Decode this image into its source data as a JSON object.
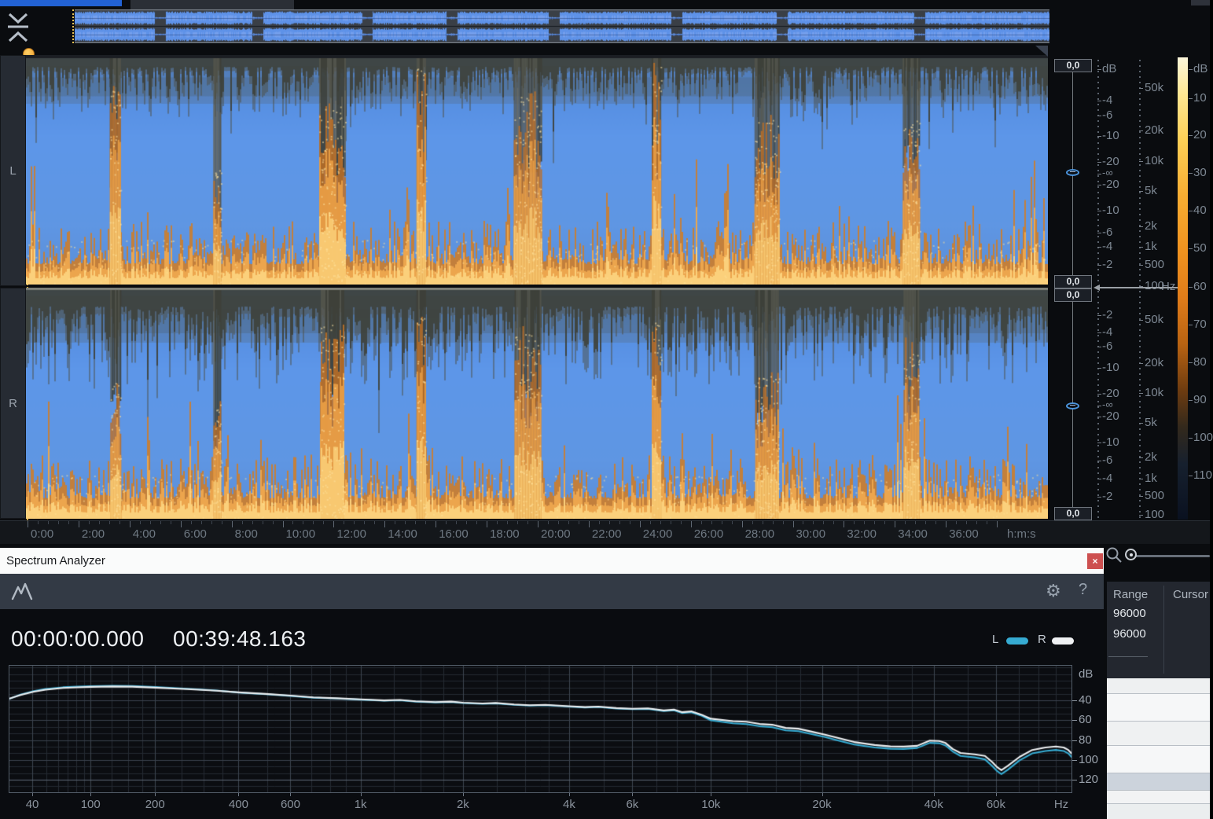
{
  "colors": {
    "accent_blue": "#2262d4",
    "waveform_blue": "#5b90e6",
    "flame_orange": "#f0a640",
    "curve_left": "#36abd2",
    "curve_right": "#eceff1",
    "close_red": "#cd5050",
    "selected_row": "#ccd3dc"
  },
  "channels": {
    "left_label": "L",
    "right_label": "R",
    "gain_boxes": [
      {
        "value": "0,0",
        "y": 75
      },
      {
        "value": "0,0",
        "y": 350
      },
      {
        "value": "0,0",
        "y": 367
      },
      {
        "value": "0,0",
        "y": 645
      }
    ],
    "amp_unit": "dB",
    "amp_ticks_left": [
      {
        "t": "dB",
        "y": 88
      },
      {
        "t": "-4",
        "y": 128
      },
      {
        "t": "-6",
        "y": 147
      },
      {
        "t": "-10",
        "y": 173
      },
      {
        "t": "-20",
        "y": 206
      },
      {
        "t": "-∞",
        "y": 221
      },
      {
        "t": "-20",
        "y": 235
      },
      {
        "t": "-10",
        "y": 268
      },
      {
        "t": "-6",
        "y": 296
      },
      {
        "t": "-4",
        "y": 314
      },
      {
        "t": "-2",
        "y": 337
      }
    ],
    "amp_ticks_right": [
      {
        "t": "-2",
        "y": 401
      },
      {
        "t": "-4",
        "y": 423
      },
      {
        "t": "-6",
        "y": 441
      },
      {
        "t": "-10",
        "y": 468
      },
      {
        "t": "-20",
        "y": 501
      },
      {
        "t": "-∞",
        "y": 516
      },
      {
        "t": "-20",
        "y": 530
      },
      {
        "t": "-10",
        "y": 563
      },
      {
        "t": "-6",
        "y": 586
      },
      {
        "t": "-4",
        "y": 609
      },
      {
        "t": "-2",
        "y": 632
      }
    ],
    "freq_ticks_left": [
      {
        "t": "50k",
        "y": 112
      },
      {
        "t": "20k",
        "y": 166
      },
      {
        "t": "10k",
        "y": 205
      },
      {
        "t": "5k",
        "y": 243
      },
      {
        "t": "2k",
        "y": 288
      },
      {
        "t": "1k",
        "y": 314
      },
      {
        "t": "500",
        "y": 337
      },
      {
        "t": "100",
        "y": 364
      }
    ],
    "freq_ticks_right": [
      {
        "t": "50k",
        "y": 407
      },
      {
        "t": "20k",
        "y": 462
      },
      {
        "t": "10k",
        "y": 500
      },
      {
        "t": "5k",
        "y": 538
      },
      {
        "t": "2k",
        "y": 582
      },
      {
        "t": "1k",
        "y": 609
      },
      {
        "t": "500",
        "y": 631
      },
      {
        "t": "100",
        "y": 655
      }
    ],
    "freq_unit": "Hz"
  },
  "spectrogram": {
    "breaks_left": [
      {
        "p": 0.0875,
        "w": 14,
        "d": 0.52,
        "f": 0.85
      },
      {
        "p": 0.1872,
        "w": 10,
        "d": 0.8,
        "f": 0.5
      },
      {
        "p": 0.3,
        "w": 34,
        "d": 0.62,
        "f": 0.78
      },
      {
        "p": 0.3868,
        "w": 12,
        "d": 0.72,
        "f": 0.95
      },
      {
        "p": 0.4912,
        "w": 36,
        "d": 0.56,
        "f": 0.82
      },
      {
        "p": 0.617,
        "w": 12,
        "d": 0.62,
        "f": 0.95
      },
      {
        "p": 0.7252,
        "w": 32,
        "d": 0.66,
        "f": 0.72
      },
      {
        "p": 0.8664,
        "w": 22,
        "d": 0.48,
        "f": 0.72
      }
    ],
    "breaks_right": [
      {
        "p": 0.0875,
        "w": 13,
        "d": 0.5,
        "f": 0.6
      },
      {
        "p": 0.1872,
        "w": 10,
        "d": 0.74,
        "f": 0.5
      },
      {
        "p": 0.3,
        "w": 30,
        "d": 0.56,
        "f": 0.85
      },
      {
        "p": 0.3868,
        "w": 12,
        "d": 0.86,
        "f": 0.9
      },
      {
        "p": 0.4912,
        "w": 34,
        "d": 0.52,
        "f": 0.8
      },
      {
        "p": 0.617,
        "w": 12,
        "d": 0.58,
        "f": 0.85
      },
      {
        "p": 0.7252,
        "w": 30,
        "d": 0.63,
        "f": 0.62
      },
      {
        "p": 0.8664,
        "w": 20,
        "d": 0.52,
        "f": 0.75
      }
    ],
    "overview_breaks": [
      0.0875,
      0.1872,
      0.3,
      0.3868,
      0.4912,
      0.617,
      0.7252,
      0.8664
    ]
  },
  "colorbar": {
    "ticks": [
      {
        "t": "dB",
        "y": 88
      },
      {
        "t": "10",
        "y": 125
      },
      {
        "t": "20",
        "y": 172
      },
      {
        "t": "30",
        "y": 220
      },
      {
        "t": "40",
        "y": 268
      },
      {
        "t": "50",
        "y": 316
      },
      {
        "t": "60",
        "y": 365
      },
      {
        "t": "70",
        "y": 413
      },
      {
        "t": "80",
        "y": 461
      },
      {
        "t": "90",
        "y": 509
      },
      {
        "t": "100",
        "y": 557
      },
      {
        "t": "110",
        "y": 605
      }
    ]
  },
  "timeline": {
    "labels": [
      "0:00",
      "2:00",
      "4:00",
      "6:00",
      "8:00",
      "10:00",
      "12:00",
      "14:00",
      "16:00",
      "18:00",
      "20:00",
      "22:00",
      "24:00",
      "26:00",
      "28:00",
      "30:00",
      "32:00",
      "34:00",
      "36:00"
    ],
    "unit_label": "h:m:s",
    "start_x": 35,
    "step": 64.9
  },
  "analyzer": {
    "title": "Spectrum Analyzer",
    "close_label": "×",
    "help_label": "?",
    "time_current": "00:00:00.000",
    "time_total": "00:39:48.163",
    "legend": {
      "left": "L",
      "right": "R"
    },
    "chart_data": {
      "type": "line",
      "x_axis_unit": "Hz",
      "y_axis_unit": "dB",
      "y_ticks": [
        40,
        60,
        80,
        100,
        120
      ],
      "y_range_db": [
        4.8,
        132.8
      ],
      "x_ticks": [
        {
          "label": "40",
          "pos": 0.0215
        },
        {
          "label": "100",
          "pos": 0.0764
        },
        {
          "label": "200",
          "pos": 0.1371
        },
        {
          "label": "400",
          "pos": 0.2157
        },
        {
          "label": "600",
          "pos": 0.2646
        },
        {
          "label": "1k",
          "pos": 0.3306
        },
        {
          "label": "2k",
          "pos": 0.427
        },
        {
          "label": "4k",
          "pos": 0.527
        },
        {
          "label": "6k",
          "pos": 0.5865
        },
        {
          "label": "10k",
          "pos": 0.6605
        },
        {
          "label": "20k",
          "pos": 0.765
        },
        {
          "label": "40k",
          "pos": 0.8703
        },
        {
          "label": "60k",
          "pos": 0.9289
        },
        {
          "label": "Hz",
          "pos": 0.9904,
          "unit": true
        }
      ],
      "x_anchors": [
        [
          40,
          0.0215
        ],
        [
          100,
          0.0764
        ],
        [
          200,
          0.1371
        ],
        [
          400,
          0.2157
        ],
        [
          600,
          0.2646
        ],
        [
          1000,
          0.3306
        ],
        [
          2000,
          0.427
        ],
        [
          4000,
          0.527
        ],
        [
          6000,
          0.5865
        ],
        [
          10000,
          0.6605
        ],
        [
          20000,
          0.765
        ],
        [
          40000,
          0.8703
        ],
        [
          60000,
          0.9289
        ],
        [
          96000,
          0.994
        ]
      ],
      "minor_freqs": [
        50,
        60,
        70,
        80,
        90,
        125,
        150,
        175,
        250,
        300,
        350,
        500,
        700,
        800,
        900,
        1250,
        1500,
        1750,
        2500,
        3000,
        3500,
        5000,
        7000,
        8000,
        9000,
        12500,
        15000,
        17500,
        25000,
        30000,
        35000,
        50000,
        70000,
        80000,
        90000
      ],
      "series": [
        {
          "name": "L",
          "color": "#36abd2",
          "points": [
            [
              0,
              38.3
            ],
            [
              0.0104,
              34
            ],
            [
              0.023,
              30.4
            ],
            [
              0.0341,
              28.3
            ],
            [
              0.0504,
              26.6
            ],
            [
              0.0637,
              26
            ],
            [
              0.0764,
              25.5
            ],
            [
              0.0971,
              25.1
            ],
            [
              0.1156,
              25.3
            ],
            [
              0.1371,
              26.4
            ],
            [
              0.1675,
              28.1
            ],
            [
              0.195,
              29.8
            ],
            [
              0.2157,
              31.9
            ],
            [
              0.2416,
              33.6
            ],
            [
              0.2646,
              35.3
            ],
            [
              0.2861,
              37.1
            ],
            [
              0.3084,
              38
            ],
            [
              0.3306,
              39.1
            ],
            [
              0.3528,
              40.2
            ],
            [
              0.3677,
              39.8
            ],
            [
              0.3825,
              41.1
            ],
            [
              0.4011,
              41.9
            ],
            [
              0.4159,
              41.5
            ],
            [
              0.427,
              42.6
            ],
            [
              0.4455,
              43.4
            ],
            [
              0.4581,
              42.9
            ],
            [
              0.4752,
              44.4
            ],
            [
              0.49,
              45.2
            ],
            [
              0.5048,
              44.7
            ],
            [
              0.527,
              46.2
            ],
            [
              0.5419,
              47
            ],
            [
              0.5545,
              46.5
            ],
            [
              0.5715,
              48
            ],
            [
              0.5865,
              48.7
            ],
            [
              0.6012,
              48.4
            ],
            [
              0.6161,
              50.6
            ],
            [
              0.6257,
              49.9
            ],
            [
              0.6331,
              52.6
            ],
            [
              0.642,
              51.9
            ],
            [
              0.6509,
              55
            ],
            [
              0.6605,
              60
            ],
            [
              0.6812,
              63
            ],
            [
              0.6938,
              63.8
            ],
            [
              0.7064,
              66
            ],
            [
              0.7183,
              67
            ],
            [
              0.7309,
              70.2
            ],
            [
              0.7428,
              71
            ],
            [
              0.7554,
              74
            ],
            [
              0.768,
              77
            ],
            [
              0.7806,
              80.5
            ],
            [
              0.7954,
              84.5
            ],
            [
              0.8147,
              87.5
            ],
            [
              0.8295,
              88.8
            ],
            [
              0.8421,
              89
            ],
            [
              0.8547,
              88
            ],
            [
              0.8666,
              82.8
            ],
            [
              0.8755,
              83.2
            ],
            [
              0.8814,
              85.5
            ],
            [
              0.8881,
              91.5
            ],
            [
              0.8955,
              96
            ],
            [
              0.9088,
              97.5
            ],
            [
              0.9185,
              99.5
            ],
            [
              0.9251,
              106
            ],
            [
              0.9296,
              111
            ],
            [
              0.934,
              114.5
            ],
            [
              0.94,
              110
            ],
            [
              0.9511,
              100.5
            ],
            [
              0.963,
              93.5
            ],
            [
              0.9755,
              91
            ],
            [
              0.9852,
              90
            ],
            [
              0.9926,
              91
            ],
            [
              0.997,
              93.5
            ],
            [
              1,
              97
            ]
          ]
        },
        {
          "name": "R",
          "color": "#eceff1",
          "points": [
            [
              0,
              38
            ],
            [
              0.0104,
              34.5
            ],
            [
              0.023,
              31
            ],
            [
              0.0341,
              29
            ],
            [
              0.0504,
              27.3
            ],
            [
              0.0637,
              26.7
            ],
            [
              0.0764,
              26.2
            ],
            [
              0.0971,
              25.8
            ],
            [
              0.1156,
              26
            ],
            [
              0.1371,
              27
            ],
            [
              0.1675,
              28.4
            ],
            [
              0.195,
              30
            ],
            [
              0.2157,
              31.7
            ],
            [
              0.2416,
              33.3
            ],
            [
              0.2646,
              35
            ],
            [
              0.2861,
              36.8
            ],
            [
              0.3084,
              37.7
            ],
            [
              0.3306,
              38.8
            ],
            [
              0.3528,
              39.9
            ],
            [
              0.3677,
              39.4
            ],
            [
              0.3825,
              40.8
            ],
            [
              0.4011,
              41.6
            ],
            [
              0.4159,
              41.1
            ],
            [
              0.427,
              42.2
            ],
            [
              0.4455,
              43
            ],
            [
              0.4581,
              42.5
            ],
            [
              0.4752,
              44
            ],
            [
              0.49,
              44.8
            ],
            [
              0.5048,
              44.3
            ],
            [
              0.527,
              45.8
            ],
            [
              0.5419,
              46.6
            ],
            [
              0.5545,
              46.1
            ],
            [
              0.5715,
              47.6
            ],
            [
              0.5865,
              48.3
            ],
            [
              0.6012,
              47.9
            ],
            [
              0.6161,
              50
            ],
            [
              0.6257,
              49.2
            ],
            [
              0.6331,
              51.8
            ],
            [
              0.642,
              51
            ],
            [
              0.6509,
              54
            ],
            [
              0.6605,
              58.4
            ],
            [
              0.6812,
              60.8
            ],
            [
              0.6938,
              61.5
            ],
            [
              0.7064,
              63.7
            ],
            [
              0.7183,
              64.5
            ],
            [
              0.7309,
              67.7
            ],
            [
              0.7428,
              68.5
            ],
            [
              0.7554,
              71.5
            ],
            [
              0.768,
              74.5
            ],
            [
              0.7806,
              78
            ],
            [
              0.7954,
              82
            ],
            [
              0.8147,
              85
            ],
            [
              0.8295,
              86.4
            ],
            [
              0.8421,
              86.6
            ],
            [
              0.8547,
              85.8
            ],
            [
              0.8666,
              80.6
            ],
            [
              0.8755,
              80.9
            ],
            [
              0.8814,
              83
            ],
            [
              0.8881,
              89
            ],
            [
              0.8955,
              93
            ],
            [
              0.9088,
              94.5
            ],
            [
              0.9185,
              96
            ],
            [
              0.9251,
              102
            ],
            [
              0.9296,
              107
            ],
            [
              0.934,
              110.5
            ],
            [
              0.94,
              106
            ],
            [
              0.9511,
              97
            ],
            [
              0.963,
              90
            ],
            [
              0.9755,
              87.5
            ],
            [
              0.9852,
              86.5
            ],
            [
              0.9926,
              87.5
            ],
            [
              0.997,
              90
            ],
            [
              1,
              93.5
            ]
          ]
        }
      ]
    }
  },
  "side_panel": {
    "range_label": "Range",
    "cursor_label": "Cursor",
    "range_values": [
      "96000",
      "96000"
    ]
  },
  "rows": {
    "items": [
      {
        "h": 19,
        "c": "#eef0f1",
        "selected": false
      },
      {
        "h": 35,
        "c": "#f6f7f8",
        "selected": false
      },
      {
        "h": 31,
        "c": "#eff1f2",
        "selected": false
      },
      {
        "h": 35,
        "c": "#f6f7f8",
        "selected": false
      },
      {
        "h": 22,
        "c": "#ccd3dc",
        "selected": true
      },
      {
        "h": 17,
        "c": "#f2f3f4",
        "selected": false
      },
      {
        "h": 20,
        "c": "#ebeeef",
        "selected": false
      }
    ]
  }
}
